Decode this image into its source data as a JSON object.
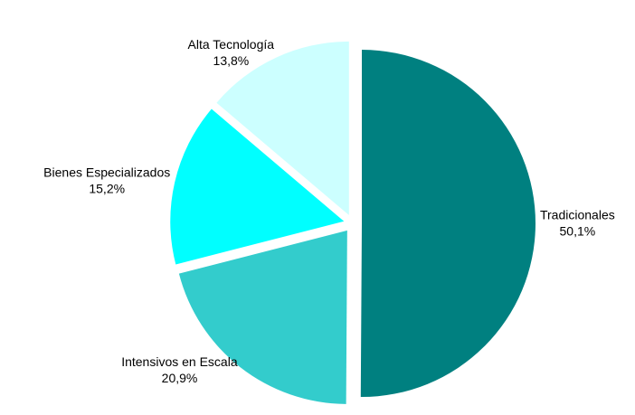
{
  "chart_data": {
    "type": "pie",
    "categories": [
      "Tradicionales",
      "Intensivos en Escala",
      "Bienes Especializados",
      "Alta Tecnología"
    ],
    "values": [
      50.1,
      20.9,
      15.2,
      13.8
    ],
    "value_labels": [
      "50,1%",
      "20,9%",
      "15,2%",
      "13,8%"
    ],
    "colors": [
      "#008080",
      "#33cccc",
      "#00ffff",
      "#ccffff"
    ]
  }
}
